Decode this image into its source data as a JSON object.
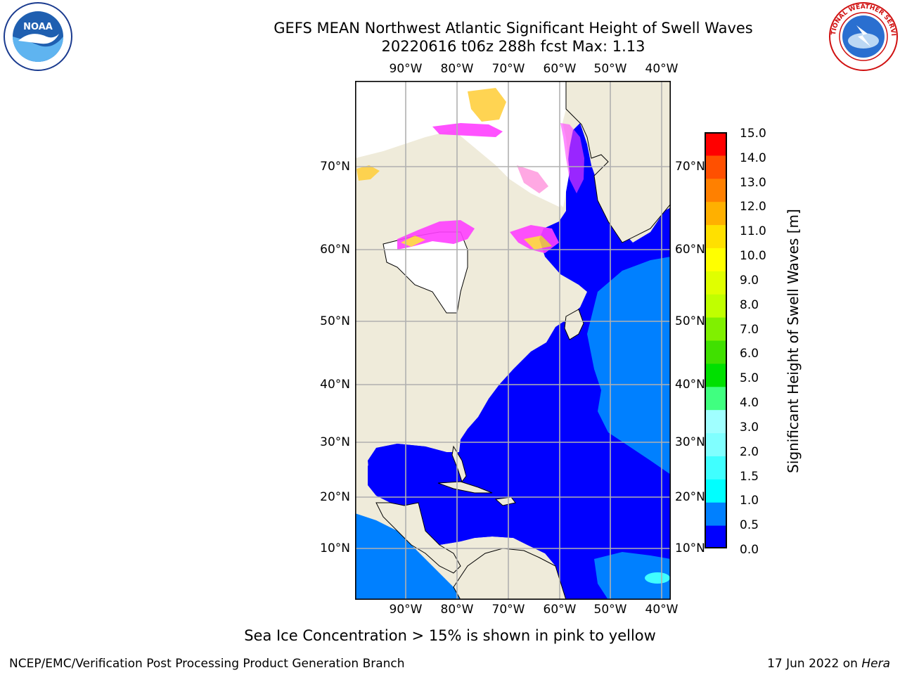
{
  "title": {
    "line1": "GEFS MEAN Northwest Atlantic Significant Height of Swell Waves",
    "line2": "20220616 t06z 288h fcst   Max: 1.13"
  },
  "logos": {
    "left": "noaa-logo",
    "right": "nws-logo",
    "left_text": "NOAA",
    "right_text": "NATIONAL WEATHER SERVICE"
  },
  "map": {
    "lon_ticks": [
      "90°W",
      "80°W",
      "70°W",
      "60°W",
      "50°W",
      "40°W"
    ],
    "lat_ticks": [
      "70°N",
      "60°N",
      "50°N",
      "40°N",
      "30°N",
      "20°N",
      "10°N"
    ],
    "grid": true,
    "colors": {
      "ocean_main": "#0000ff",
      "ocean_light": "#0080ff",
      "ocean_cyan": "#40ffff",
      "land": "#efebda",
      "ice_pink": "#ff40ff",
      "ice_yellow": "#ffd040"
    }
  },
  "colorbar": {
    "title": "Significant Height of Swell Waves [m]",
    "labels": [
      "15.0",
      "14.0",
      "13.0",
      "12.0",
      "11.0",
      "10.0",
      "9.0",
      "8.0",
      "7.0",
      "6.0",
      "5.0",
      "4.0",
      "3.0",
      "2.0",
      "1.5",
      "1.0",
      "0.5",
      "0.0"
    ],
    "colors": [
      "#0000ff",
      "#0080ff",
      "#00ffff",
      "#40ffff",
      "#80ffff",
      "#a0ffff",
      "#40ff80",
      "#00e000",
      "#40e000",
      "#80f000",
      "#c0ff00",
      "#e0ff00",
      "#ffff00",
      "#ffe000",
      "#ffb000",
      "#ff8000",
      "#ff5000",
      "#ff2000",
      "#ff0000"
    ]
  },
  "note": "Sea Ice Concentration > 15% is shown in pink to yellow",
  "footer": {
    "left": "NCEP/EMC/Verification Post Processing Product Generation Branch",
    "right_date": "17 Jun 2022 on ",
    "right_host": "Hera"
  }
}
